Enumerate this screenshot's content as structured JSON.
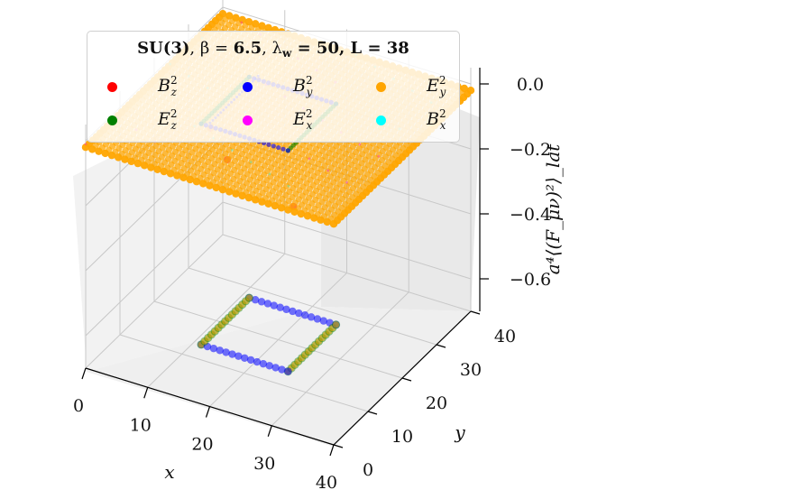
{
  "chart_data": {
    "type": "scatter",
    "projection": "3d",
    "title": "SU(3), β = 6.5, λ_w = 50, L = 38",
    "xlabel": "x",
    "ylabel": "y",
    "zlabel": "a⁴⟨(F_μν)²⟩_lat",
    "xlim": [
      0,
      40
    ],
    "ylim": [
      0,
      40
    ],
    "zlim": [
      -0.7,
      0.05
    ],
    "xticks": [
      "0",
      "10",
      "20",
      "30",
      "40"
    ],
    "yticks": [
      "0",
      "10",
      "20",
      "30",
      "40"
    ],
    "zticks": [
      "0.0",
      "−0.2",
      "−0.4",
      "−0.6"
    ],
    "grid": true,
    "legend_position": "top-left",
    "series": [
      {
        "name": "B_z^2",
        "color": "#ff0000"
      },
      {
        "name": "B_y^2",
        "color": "#0000ff"
      },
      {
        "name": "E_y^2",
        "color": "#ffa500"
      },
      {
        "name": "E_z^2",
        "color": "#008000"
      },
      {
        "name": "E_x^2",
        "color": "#ff00ff"
      },
      {
        "name": "B_x^2",
        "color": "#00ffff"
      }
    ],
    "plane_level": -0.02,
    "loop": {
      "x_range": [
        12,
        26
      ],
      "y_range": [
        12,
        26
      ],
      "level": -0.68
    }
  },
  "legend": {
    "title_bold": "SU(3)",
    "title_mid": ", β = ",
    "beta": "6.5",
    "lambda_sym": ", λ",
    "lambda_sub": "w",
    "lambda_val": " = 50, ",
    "L_label": "L = 38",
    "items": [
      {
        "base": "B",
        "sub": "z",
        "sup": "2",
        "color": "#ff0000"
      },
      {
        "base": "B",
        "sub": "y",
        "sup": "2",
        "color": "#0000ff"
      },
      {
        "base": "E",
        "sub": "y",
        "sup": "2",
        "color": "#ffa500"
      },
      {
        "base": "E",
        "sub": "z",
        "sup": "2",
        "color": "#008000"
      },
      {
        "base": "E",
        "sub": "x",
        "sup": "2",
        "color": "#ff00ff"
      },
      {
        "base": "B",
        "sub": "x",
        "sup": "2",
        "color": "#00ffff"
      }
    ]
  }
}
